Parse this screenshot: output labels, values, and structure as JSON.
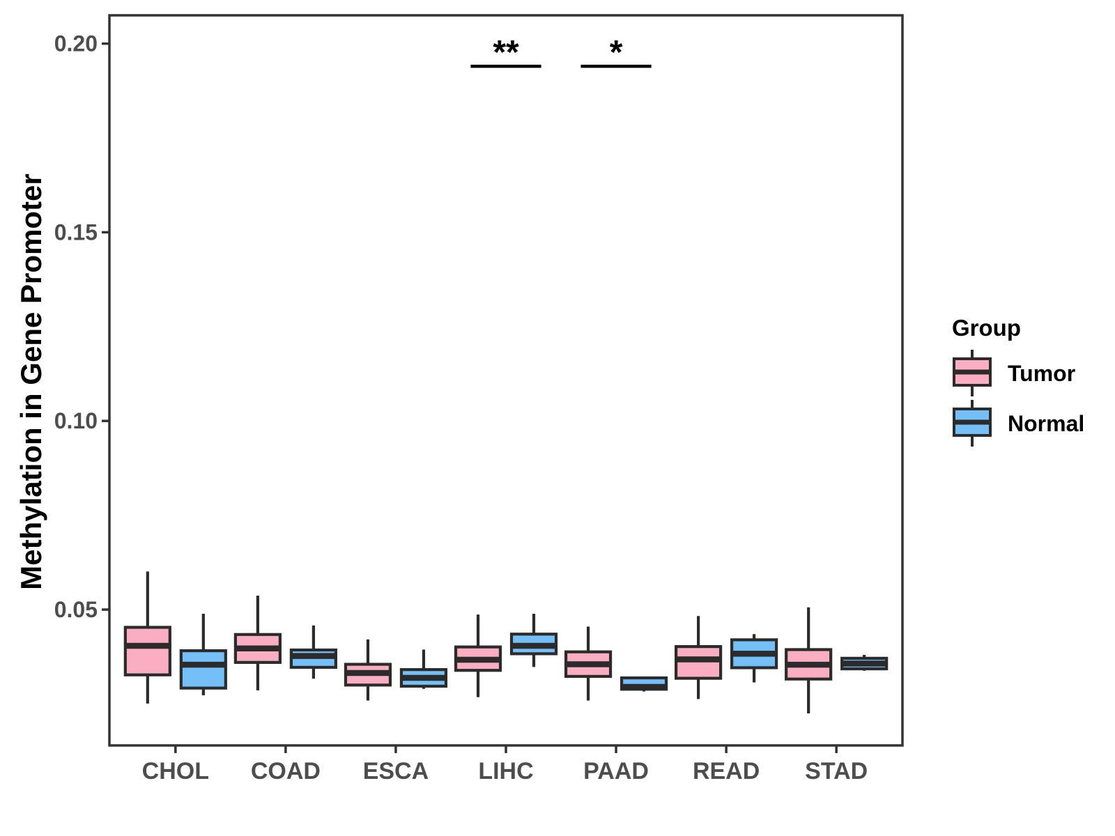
{
  "figure": {
    "background": "#FFFFFF"
  },
  "legend": {
    "title": "Group",
    "items": [
      {
        "label": "Tumor",
        "color": "#FBAEC1"
      },
      {
        "label": "Normal",
        "color": "#74BFF7"
      }
    ]
  },
  "chart_data": {
    "type": "boxplot",
    "title": "",
    "xlabel": "",
    "ylabel": "Methylation in Gene Promoter",
    "categories": [
      "CHOL",
      "COAD",
      "ESCA",
      "LIHC",
      "PAAD",
      "READ",
      "STAD"
    ],
    "y_ticks": [
      0.05,
      0.1,
      0.15,
      0.2
    ],
    "y_tick_labels": [
      "0.05",
      "0.10",
      "0.15",
      "0.20"
    ],
    "ylim": [
      0.014,
      0.2075
    ],
    "grid": "off",
    "legend_position": "right",
    "stroke_color": "#2B2B2B",
    "axis_color": "#333333",
    "tick_label_color": "#4D4D4D",
    "series": [
      {
        "name": "Tumor",
        "fill": "#FBAEC1",
        "values": [
          {
            "category": "CHOL",
            "min": 0.0251,
            "q1": 0.0327,
            "median": 0.0404,
            "q3": 0.0453,
            "max": 0.0601
          },
          {
            "category": "COAD",
            "min": 0.0286,
            "q1": 0.036,
            "median": 0.0397,
            "q3": 0.0434,
            "max": 0.0537
          },
          {
            "category": "ESCA",
            "min": 0.0259,
            "q1": 0.03,
            "median": 0.0332,
            "q3": 0.0355,
            "max": 0.0421
          },
          {
            "category": "LIHC",
            "min": 0.0268,
            "q1": 0.0339,
            "median": 0.0367,
            "q3": 0.0401,
            "max": 0.0487
          },
          {
            "category": "PAAD",
            "min": 0.0259,
            "q1": 0.0323,
            "median": 0.0355,
            "q3": 0.0388,
            "max": 0.0455
          },
          {
            "category": "READ",
            "min": 0.0263,
            "q1": 0.0318,
            "median": 0.0368,
            "q3": 0.0402,
            "max": 0.0483
          },
          {
            "category": "STAD",
            "min": 0.0225,
            "q1": 0.0316,
            "median": 0.0354,
            "q3": 0.0394,
            "max": 0.0506
          }
        ]
      },
      {
        "name": "Normal",
        "fill": "#74BFF7",
        "values": [
          {
            "category": "CHOL",
            "min": 0.0273,
            "q1": 0.0292,
            "median": 0.0354,
            "q3": 0.0391,
            "max": 0.0489
          },
          {
            "category": "COAD",
            "min": 0.0317,
            "q1": 0.0347,
            "median": 0.0377,
            "q3": 0.0393,
            "max": 0.0458
          },
          {
            "category": "ESCA",
            "min": 0.029,
            "q1": 0.0297,
            "median": 0.0319,
            "q3": 0.0341,
            "max": 0.0394
          },
          {
            "category": "LIHC",
            "min": 0.0348,
            "q1": 0.0383,
            "median": 0.0404,
            "q3": 0.0435,
            "max": 0.0489
          },
          {
            "category": "PAAD",
            "min": 0.0283,
            "q1": 0.0289,
            "median": 0.0295,
            "q3": 0.0319,
            "max": 0.0322
          },
          {
            "category": "READ",
            "min": 0.0307,
            "q1": 0.0346,
            "median": 0.0383,
            "q3": 0.042,
            "max": 0.0435
          },
          {
            "category": "STAD",
            "min": 0.0338,
            "q1": 0.0343,
            "median": 0.0357,
            "q3": 0.0371,
            "max": 0.038
          }
        ]
      }
    ],
    "annotations": [
      {
        "label": "**",
        "category": "LIHC",
        "y": 0.194,
        "half_width_frac": 0.32
      },
      {
        "label": "*",
        "category": "PAAD",
        "y": 0.194,
        "half_width_frac": 0.32
      }
    ]
  }
}
